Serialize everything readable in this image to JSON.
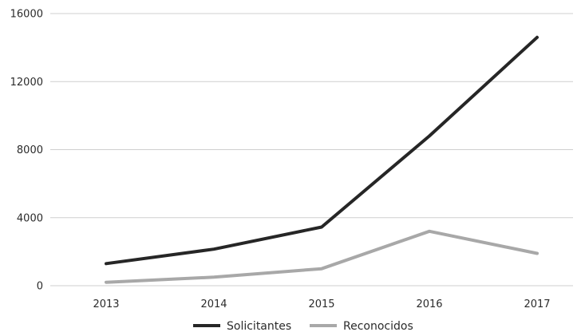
{
  "chart_data": {
    "type": "line",
    "title": "",
    "xlabel": "",
    "ylabel": "",
    "categories": [
      "2013",
      "2014",
      "2015",
      "2016",
      "2017"
    ],
    "ylim": [
      0,
      16000
    ],
    "yticks": [
      0,
      4000,
      8000,
      12000,
      16000
    ],
    "ytick_labels": [
      "0",
      "4000",
      "8000",
      "12000",
      "16000"
    ],
    "grid": true,
    "legend_position": "bottom",
    "series": [
      {
        "name": "Solicitantes",
        "values": [
          1300,
          2150,
          3450,
          8800,
          14600
        ],
        "color": "#262626"
      },
      {
        "name": "Reconocidos",
        "values": [
          200,
          500,
          1000,
          3200,
          1900
        ],
        "color": "#a8a8a8"
      }
    ]
  }
}
